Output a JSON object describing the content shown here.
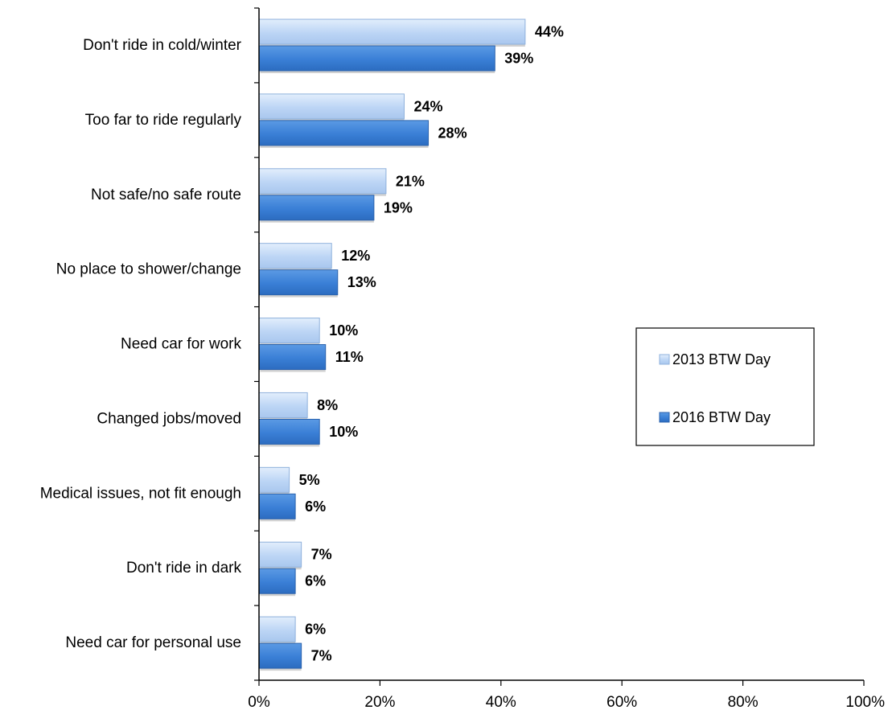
{
  "chart_data": {
    "type": "bar",
    "orientation": "horizontal",
    "categories": [
      "Don't ride in cold/winter",
      "Too far to ride regularly",
      "Not safe/no safe route",
      "No place to shower/change",
      "Need car for work",
      "Changed jobs/moved",
      "Medical issues, not fit enough",
      "Don't ride in dark",
      "Need car for personal use"
    ],
    "series": [
      {
        "name": "2013 BTW Day",
        "color": "#bcd5f5",
        "values": [
          44,
          24,
          21,
          12,
          10,
          8,
          5,
          7,
          6
        ],
        "labels": [
          "44%",
          "24%",
          "21%",
          "12%",
          "10%",
          "8%",
          "5%",
          "7%",
          "6%"
        ]
      },
      {
        "name": "2016 BTW Day",
        "color": "#3a7fd6",
        "values": [
          39,
          28,
          19,
          13,
          11,
          10,
          6,
          6,
          7
        ],
        "labels": [
          "39%",
          "28%",
          "19%",
          "13%",
          "11%",
          "10%",
          "6%",
          "6%",
          "7%"
        ]
      }
    ],
    "xlim": [
      0,
      100
    ],
    "xticks": [
      0,
      20,
      40,
      60,
      80,
      100
    ],
    "xtick_labels": [
      "0%",
      "20%",
      "40%",
      "60%",
      "80%",
      "100%"
    ],
    "grid": false,
    "legend_position": "right"
  }
}
